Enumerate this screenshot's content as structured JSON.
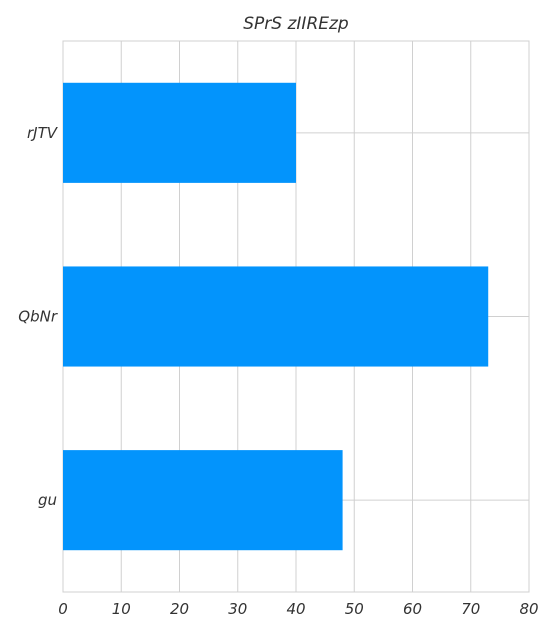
{
  "chart_data": {
    "type": "bar",
    "orientation": "horizontal",
    "title": "SPrS zIIREzp",
    "xlabel": "",
    "ylabel": "",
    "categories": [
      "rJTV",
      "QbNr",
      "gu"
    ],
    "values": [
      40,
      73,
      48
    ],
    "xlim": [
      0,
      80
    ],
    "x_ticks": [
      0,
      10,
      20,
      30,
      40,
      50,
      60,
      70,
      80
    ],
    "grid": true,
    "bar_color": "#0394fc",
    "grid_color": "#d0d0d0",
    "text_color": "#333333"
  }
}
